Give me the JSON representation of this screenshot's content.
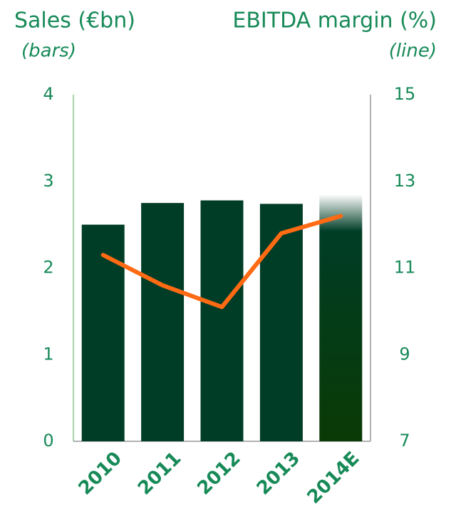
{
  "chart_data": {
    "type": "bar_line",
    "title_left": "Sales (€bn)",
    "subtitle_left": "(bars)",
    "title_right": "EBITDA margin (%)",
    "subtitle_right": "(line)",
    "categories": [
      "2010",
      "2011",
      "2012",
      "2013",
      "2014E"
    ],
    "series": [
      {
        "name": "Sales",
        "type": "bar",
        "color": "#003d26",
        "values": [
          2.5,
          2.75,
          2.78,
          2.74,
          2.85
        ]
      },
      {
        "name": "EBITDA margin",
        "type": "line",
        "axis": "y2",
        "color": "#ff6a13",
        "values": [
          11.3,
          10.6,
          10.1,
          11.8,
          12.2
        ]
      }
    ],
    "ylim": [
      0,
      4
    ],
    "yticks": [
      0,
      1,
      2,
      3,
      4
    ],
    "y2lim": [
      7,
      15
    ],
    "y2ticks": [
      7,
      9,
      11,
      13,
      15
    ]
  }
}
